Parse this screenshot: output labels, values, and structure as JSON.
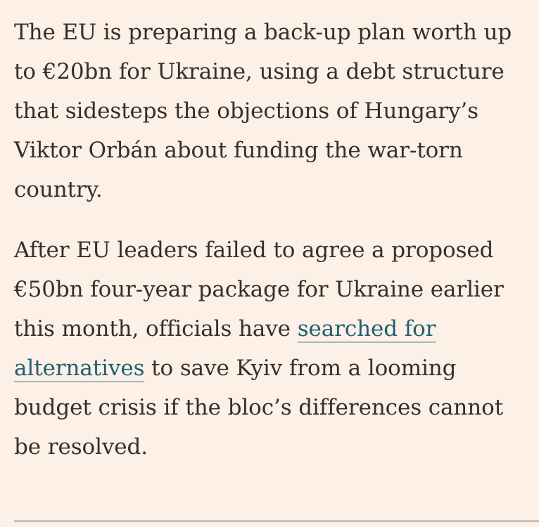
{
  "article": {
    "paragraphs": [
      {
        "text": "The EU is preparing a back-up plan worth up to €20bn for Ukraine, using a debt structure that sidesteps the objections of Hungary’s Viktor Orbán about funding the war-torn country."
      },
      {
        "before_link": "After EU leaders failed to agree a proposed €50bn four-year package for Ukraine earlier this month, officials have ",
        "link_text": "searched for alternatives",
        "after_link": " to save Kyiv from a looming budget crisis if the bloc’s differences cannot be resolved."
      }
    ]
  }
}
